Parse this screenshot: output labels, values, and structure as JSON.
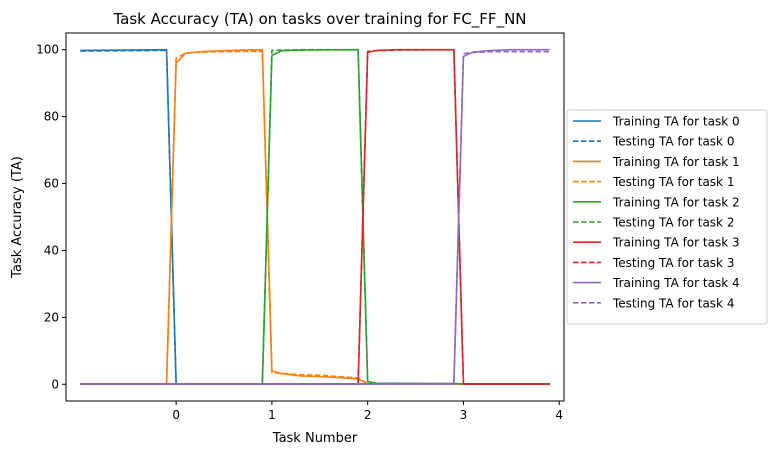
{
  "chart_data": {
    "type": "line",
    "title": "Task Accuracy (TA) on tasks over training for FC_FF_NN",
    "xlabel": "Task Number",
    "ylabel": "Task Accuracy (TA)",
    "xlim": [
      -1.15,
      4.05
    ],
    "ylim": [
      -5,
      105
    ],
    "xticks": [
      0,
      1,
      2,
      3,
      4
    ],
    "yticks": [
      0,
      20,
      40,
      60,
      80,
      100
    ],
    "grid": false,
    "legend_position": "outside-right",
    "series": [
      {
        "name": "Training TA for task 0",
        "color": "#1f77b4",
        "dash": "solid",
        "x": [
          -1.0,
          -0.1,
          0.0,
          0.1,
          0.9,
          1.0,
          1.9,
          2.0,
          2.9,
          3.0,
          3.9
        ],
        "y": [
          99.8,
          100,
          0.1,
          0.1,
          0.1,
          0.1,
          0.1,
          0.1,
          0.1,
          0.1,
          0.1
        ]
      },
      {
        "name": "Testing TA for task 0",
        "color": "#1f77b4",
        "dash": "dashed",
        "x": [
          -1.0,
          -0.1,
          0.0,
          0.1,
          0.9,
          1.0,
          1.9,
          2.0,
          2.9,
          3.0,
          3.9
        ],
        "y": [
          99.6,
          99.8,
          0.1,
          0.1,
          0.1,
          0.1,
          0.1,
          0.1,
          0.1,
          0.1,
          0.1
        ]
      },
      {
        "name": "Training TA for task 1",
        "color": "#ff7f0e",
        "dash": "solid",
        "x": [
          -1.0,
          -0.1,
          0.0,
          0.1,
          0.3,
          0.5,
          0.7,
          0.9,
          1.0,
          1.1,
          1.3,
          1.5,
          1.7,
          1.9,
          2.0,
          2.9,
          3.0,
          3.9
        ],
        "y": [
          0.1,
          0.1,
          96,
          99,
          99.5,
          99.7,
          99.9,
          100,
          4,
          3.2,
          2.5,
          2.3,
          2.0,
          1.6,
          0.2,
          0.1,
          0.1,
          0.1
        ]
      },
      {
        "name": "Testing TA for task 1",
        "color": "#ff7f0e",
        "dash": "dashed",
        "x": [
          -1.0,
          -0.1,
          0.0,
          0.1,
          0.3,
          0.5,
          0.7,
          0.9,
          1.0,
          1.1,
          1.3,
          1.5,
          1.7,
          1.9,
          2.0,
          2.9,
          3.0,
          3.9
        ],
        "y": [
          0.1,
          0.1,
          97.5,
          99,
          99.3,
          99.4,
          99.5,
          99.5,
          3.5,
          3.3,
          2.8,
          2.7,
          2.3,
          1.9,
          0.2,
          0.1,
          0.1,
          0.1
        ]
      },
      {
        "name": "Training TA for task 2",
        "color": "#2ca02c",
        "dash": "solid",
        "x": [
          -1.0,
          0.9,
          1.0,
          1.1,
          1.3,
          1.9,
          2.0,
          2.1,
          2.9,
          3.0,
          3.9
        ],
        "y": [
          0.1,
          0.1,
          98.3,
          99.7,
          99.9,
          100,
          0.8,
          0.3,
          0.2,
          0.1,
          0.1
        ]
      },
      {
        "name": "Testing TA for task 2",
        "color": "#2ca02c",
        "dash": "dashed",
        "x": [
          -1.0,
          0.9,
          1.0,
          1.1,
          1.3,
          1.9,
          2.0,
          2.1,
          2.9,
          3.0,
          3.9
        ],
        "y": [
          0.1,
          0.1,
          99.8,
          99.9,
          100,
          100,
          0.6,
          0.3,
          0.2,
          0.1,
          0.1
        ]
      },
      {
        "name": "Training TA for task 3",
        "color": "#d62728",
        "dash": "solid",
        "x": [
          -1.0,
          1.9,
          2.0,
          2.1,
          2.3,
          2.9,
          3.0,
          3.9
        ],
        "y": [
          0.1,
          0.1,
          99.2,
          99.8,
          100,
          100,
          0.1,
          0.1
        ]
      },
      {
        "name": "Testing TA for task 3",
        "color": "#d62728",
        "dash": "dashed",
        "x": [
          -1.0,
          1.9,
          2.0,
          2.1,
          2.3,
          2.9,
          3.0,
          3.9
        ],
        "y": [
          0.1,
          0.1,
          99.5,
          99.7,
          99.9,
          100,
          0.1,
          0.1
        ]
      },
      {
        "name": "Training TA for task 4",
        "color": "#9467bd",
        "dash": "solid",
        "x": [
          -1.0,
          2.9,
          3.0,
          3.1,
          3.3,
          3.5,
          3.9
        ],
        "y": [
          0.1,
          0.1,
          98,
          99.3,
          99.8,
          100,
          100
        ]
      },
      {
        "name": "Testing TA for task 4",
        "color": "#9467bd",
        "dash": "dashed",
        "x": [
          -1.0,
          2.9,
          3.0,
          3.1,
          3.3,
          3.5,
          3.9
        ],
        "y": [
          0.1,
          0.1,
          98.8,
          99.2,
          99.4,
          99.4,
          99.4
        ]
      }
    ]
  }
}
